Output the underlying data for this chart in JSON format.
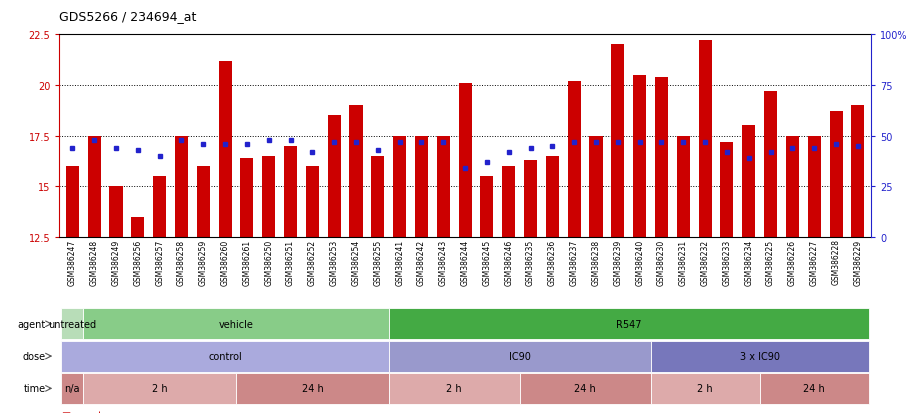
{
  "title": "GDS5266 / 234694_at",
  "samples": [
    "GSM386247",
    "GSM386248",
    "GSM386249",
    "GSM386256",
    "GSM386257",
    "GSM386258",
    "GSM386259",
    "GSM386260",
    "GSM386261",
    "GSM386250",
    "GSM386251",
    "GSM386252",
    "GSM386253",
    "GSM386254",
    "GSM386255",
    "GSM386241",
    "GSM386242",
    "GSM386243",
    "GSM386244",
    "GSM386245",
    "GSM386246",
    "GSM386235",
    "GSM386236",
    "GSM386237",
    "GSM386238",
    "GSM386239",
    "GSM386240",
    "GSM386230",
    "GSM386231",
    "GSM386232",
    "GSM386233",
    "GSM386234",
    "GSM386225",
    "GSM386226",
    "GSM386227",
    "GSM386228",
    "GSM386229"
  ],
  "counts": [
    16.0,
    17.5,
    15.0,
    13.5,
    15.5,
    17.5,
    16.0,
    21.2,
    16.4,
    16.5,
    17.0,
    16.0,
    18.5,
    19.0,
    16.5,
    17.5,
    17.5,
    17.5,
    20.1,
    15.5,
    16.0,
    16.3,
    16.5,
    20.2,
    17.5,
    22.0,
    20.5,
    20.4,
    17.5,
    22.2,
    17.2,
    18.0,
    19.7,
    17.5,
    17.5,
    18.7,
    19.0
  ],
  "percentile_ranks": [
    44,
    48,
    44,
    43,
    40,
    48,
    46,
    46,
    46,
    48,
    48,
    42,
    47,
    47,
    43,
    47,
    47,
    47,
    34,
    37,
    42,
    44,
    45,
    47,
    47,
    47,
    47,
    47,
    47,
    47,
    42,
    39,
    42,
    44,
    44,
    46,
    45
  ],
  "ylim_left": [
    12.5,
    22.5
  ],
  "ylim_right": [
    0,
    100
  ],
  "yticks_left": [
    12.5,
    15.0,
    17.5,
    20.0,
    22.5
  ],
  "yticks_right": [
    0,
    25,
    50,
    75,
    100
  ],
  "ytick_labels_right": [
    "0",
    "25",
    "50",
    "75",
    "100%"
  ],
  "bar_color": "#cc0000",
  "dot_color": "#2222cc",
  "agent_groups": [
    {
      "label": "untreated",
      "start": 0,
      "end": 1,
      "color": "#b8ddb8"
    },
    {
      "label": "vehicle",
      "start": 1,
      "end": 15,
      "color": "#88cc88"
    },
    {
      "label": "R547",
      "start": 15,
      "end": 37,
      "color": "#44aa44"
    }
  ],
  "dose_groups": [
    {
      "label": "control",
      "start": 0,
      "end": 15,
      "color": "#aaaadd"
    },
    {
      "label": "IC90",
      "start": 15,
      "end": 27,
      "color": "#9999cc"
    },
    {
      "label": "3 x IC90",
      "start": 27,
      "end": 37,
      "color": "#7777bb"
    }
  ],
  "time_groups": [
    {
      "label": "n/a",
      "start": 0,
      "end": 1,
      "color": "#cc8888"
    },
    {
      "label": "2 h",
      "start": 1,
      "end": 8,
      "color": "#ddaaaa"
    },
    {
      "label": "24 h",
      "start": 8,
      "end": 15,
      "color": "#cc8888"
    },
    {
      "label": "2 h",
      "start": 15,
      "end": 21,
      "color": "#ddaaaa"
    },
    {
      "label": "24 h",
      "start": 21,
      "end": 27,
      "color": "#cc8888"
    },
    {
      "label": "2 h",
      "start": 27,
      "end": 32,
      "color": "#ddaaaa"
    },
    {
      "label": "24 h",
      "start": 32,
      "end": 37,
      "color": "#cc8888"
    }
  ]
}
